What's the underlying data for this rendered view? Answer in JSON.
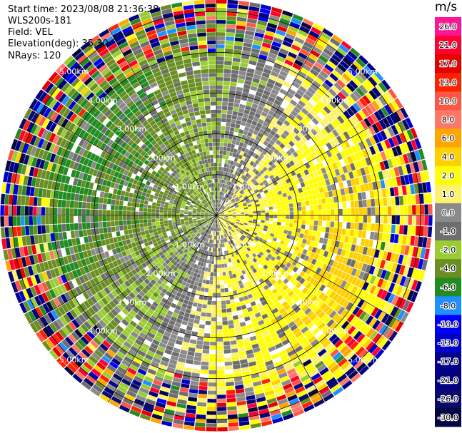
{
  "header": {
    "start_time": "Start time: 2023/08/08 21:36:38",
    "instrument": "WLS200s-181",
    "field": "Field: VEL",
    "elevation": "Elevation(deg): 35.30",
    "nrays": "NRays: 120"
  },
  "chart_data": {
    "type": "heatmap",
    "projection": "polar-ppi",
    "field": "VEL",
    "units": "m/s",
    "nrays": 120,
    "range_rings_km": [
      1.0,
      2.0,
      3.0,
      4.0,
      5.0
    ],
    "ring_labels": [
      "1.00km",
      "2.00km",
      "3.00km",
      "4.00km",
      "5.00km"
    ],
    "max_range_km": 5.3,
    "colorbar": {
      "units": "m/s",
      "tick_labels": [
        "26.0",
        "21.0",
        "17.0",
        "13.0",
        "10.0",
        "8.0",
        "6.0",
        "4.0",
        "2.0",
        "1.0",
        "0.0",
        "-1.0",
        "-2.0",
        "-4.0",
        "-6.0",
        "-8.0",
        "-10.0",
        "-13.0",
        "-17.0",
        "-21.0",
        "-26.0",
        "-30.0"
      ],
      "colors": [
        "#ff1493",
        "#ff0030",
        "#e60000",
        "#ff2200",
        "#ff5544",
        "#ff7766",
        "#ffa500",
        "#ffd000",
        "#ffff00",
        "#fdf36a",
        "#8a8a8a",
        "#6e6e6e",
        "#9acd32",
        "#6b8e23",
        "#228b22",
        "#1e90ff",
        "#0000ff",
        "#0000cd",
        "#00008b",
        "#000080",
        "#0a0a6e",
        "#050540"
      ]
    },
    "pattern": {
      "description_near": "positive (yellow) toward east/southeast, negative (green) toward west/northwest, gray near zero",
      "inner_clean_range_km": 4.0
    }
  }
}
